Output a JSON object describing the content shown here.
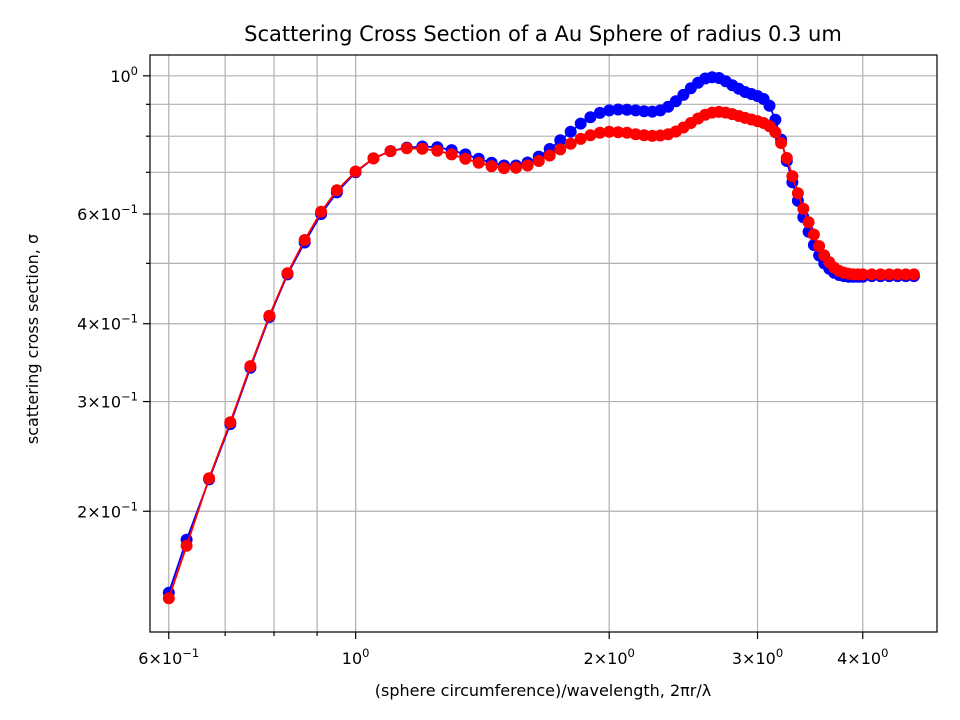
{
  "chart_data": {
    "type": "line",
    "title": "Scattering Cross Section of a Au Sphere of radius 0.3 um",
    "xlabel": "(sphere circumference)/wavelength, 2πr/λ",
    "ylabel": "scattering cross section, σ",
    "xscale": "log",
    "yscale": "log",
    "xlim": [
      0.57,
      4.9
    ],
    "ylim": [
      0.128,
      1.08
    ],
    "grid": true,
    "x_ticks": [
      {
        "value": 0.6,
        "base": "6×10",
        "exp": "−1"
      },
      {
        "value": 1.0,
        "base": "10",
        "exp": "0"
      },
      {
        "value": 2.0,
        "base": "2×10",
        "exp": "0"
      },
      {
        "value": 3.0,
        "base": "3×10",
        "exp": "0"
      },
      {
        "value": 4.0,
        "base": "4×10",
        "exp": "0"
      }
    ],
    "y_ticks": [
      {
        "value": 0.2,
        "base": "2×10",
        "exp": "−1"
      },
      {
        "value": 0.3,
        "base": "3×10",
        "exp": "−1"
      },
      {
        "value": 0.4,
        "base": "4×10",
        "exp": "−1"
      },
      {
        "value": 0.6,
        "base": "6×10",
        "exp": "−1"
      },
      {
        "value": 1.0,
        "base": "10",
        "exp": "0"
      }
    ],
    "series": [
      {
        "color": "#0000ff",
        "x": [
          0.6,
          0.63,
          0.67,
          0.71,
          0.75,
          0.79,
          0.83,
          0.87,
          0.91,
          0.95,
          1.0,
          1.05,
          1.1,
          1.15,
          1.2,
          1.25,
          1.3,
          1.35,
          1.4,
          1.45,
          1.5,
          1.55,
          1.6,
          1.65,
          1.7,
          1.75,
          1.8,
          1.85,
          1.9,
          1.95,
          2.0,
          2.05,
          2.1,
          2.15,
          2.2,
          2.25,
          2.3,
          2.35,
          2.4,
          2.45,
          2.5,
          2.55,
          2.6,
          2.65,
          2.7,
          2.75,
          2.8,
          2.85,
          2.9,
          2.95,
          3.0,
          3.05,
          3.1,
          3.15,
          3.2,
          3.25,
          3.3,
          3.35,
          3.4,
          3.45,
          3.5,
          3.55,
          3.6,
          3.65,
          3.7,
          3.75,
          3.8,
          3.85,
          3.9,
          3.95,
          4.0,
          4.1,
          4.2,
          4.3,
          4.4,
          4.5,
          4.6
        ],
        "y": [
          0.148,
          0.18,
          0.225,
          0.276,
          0.34,
          0.41,
          0.48,
          0.54,
          0.6,
          0.65,
          0.7,
          0.737,
          0.757,
          0.767,
          0.77,
          0.768,
          0.76,
          0.748,
          0.736,
          0.725,
          0.718,
          0.718,
          0.726,
          0.742,
          0.763,
          0.788,
          0.813,
          0.838,
          0.858,
          0.872,
          0.88,
          0.883,
          0.882,
          0.88,
          0.877,
          0.876,
          0.88,
          0.892,
          0.91,
          0.932,
          0.955,
          0.975,
          0.99,
          0.995,
          0.992,
          0.98,
          0.966,
          0.953,
          0.942,
          0.935,
          0.928,
          0.918,
          0.895,
          0.85,
          0.79,
          0.73,
          0.675,
          0.63,
          0.593,
          0.562,
          0.535,
          0.515,
          0.5,
          0.49,
          0.483,
          0.479,
          0.477,
          0.476,
          0.476,
          0.476,
          0.476,
          0.477,
          0.477,
          0.477,
          0.477,
          0.477,
          0.477
        ]
      },
      {
        "color": "#ff0000",
        "x": [
          0.6,
          0.63,
          0.67,
          0.71,
          0.75,
          0.79,
          0.83,
          0.87,
          0.91,
          0.95,
          1.0,
          1.05,
          1.1,
          1.15,
          1.2,
          1.25,
          1.3,
          1.35,
          1.4,
          1.45,
          1.5,
          1.55,
          1.6,
          1.65,
          1.7,
          1.75,
          1.8,
          1.85,
          1.9,
          1.95,
          2.0,
          2.05,
          2.1,
          2.15,
          2.2,
          2.25,
          2.3,
          2.35,
          2.4,
          2.45,
          2.5,
          2.55,
          2.6,
          2.65,
          2.7,
          2.75,
          2.8,
          2.85,
          2.9,
          2.95,
          3.0,
          3.05,
          3.1,
          3.15,
          3.2,
          3.25,
          3.3,
          3.35,
          3.4,
          3.45,
          3.5,
          3.55,
          3.6,
          3.65,
          3.7,
          3.75,
          3.8,
          3.85,
          3.9,
          3.95,
          4.0,
          4.1,
          4.2,
          4.3,
          4.4,
          4.5,
          4.6
        ],
        "y": [
          0.145,
          0.176,
          0.226,
          0.278,
          0.342,
          0.412,
          0.482,
          0.545,
          0.605,
          0.655,
          0.702,
          0.737,
          0.757,
          0.765,
          0.764,
          0.758,
          0.748,
          0.736,
          0.725,
          0.716,
          0.711,
          0.712,
          0.718,
          0.73,
          0.745,
          0.762,
          0.778,
          0.792,
          0.803,
          0.81,
          0.813,
          0.812,
          0.81,
          0.806,
          0.803,
          0.801,
          0.802,
          0.806,
          0.814,
          0.826,
          0.84,
          0.854,
          0.866,
          0.873,
          0.875,
          0.873,
          0.868,
          0.862,
          0.856,
          0.851,
          0.846,
          0.84,
          0.83,
          0.812,
          0.78,
          0.738,
          0.69,
          0.648,
          0.612,
          0.582,
          0.556,
          0.533,
          0.515,
          0.502,
          0.492,
          0.486,
          0.483,
          0.481,
          0.48,
          0.48,
          0.48,
          0.48,
          0.48,
          0.48,
          0.48,
          0.48,
          0.48
        ]
      }
    ]
  }
}
